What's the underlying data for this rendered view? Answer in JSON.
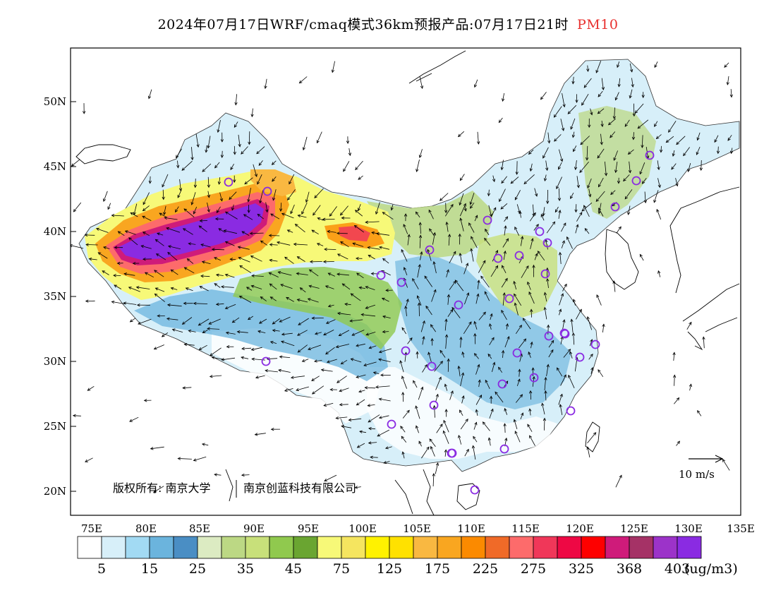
{
  "title": {
    "main": "2024年07月17日WRF/cmaq模式36km预报产品:07月17日21时",
    "variable": "PM10",
    "variable_color": "#e8302e"
  },
  "axes": {
    "lat_ticks": [
      "50N",
      "45N",
      "40N",
      "35N",
      "30N",
      "25N",
      "20N"
    ],
    "lon_ticks": [
      "75E",
      "80E",
      "85E",
      "90E",
      "95E",
      "100E",
      "105E",
      "110E",
      "115E",
      "120E",
      "125E",
      "130E",
      "135E"
    ]
  },
  "wind_legend": {
    "label": "10 m/s"
  },
  "credit": {
    "left": "版权所有: 南京大学",
    "right": "南京创蓝科技有限公司"
  },
  "colorbar": {
    "colors": [
      "#ffffff",
      "#d7eff9",
      "#a2daf3",
      "#6bb4dd",
      "#4a8ec4",
      "#dcebc2",
      "#bcd884",
      "#c8e07a",
      "#90c94e",
      "#6aa531",
      "#f7f978",
      "#f5e55f",
      "#fff200",
      "#ffe100",
      "#f9b841",
      "#f9a620",
      "#fb8a00",
      "#f06a28",
      "#fd6b6b",
      "#f03759",
      "#ee0844",
      "#fe0000",
      "#cf1b7a",
      "#a53266",
      "#9c33c9",
      "#8a2be2"
    ],
    "labels": [
      "5",
      "15",
      "25",
      "35",
      "45",
      "75",
      "125",
      "175",
      "225",
      "275",
      "325",
      "368",
      "403"
    ],
    "unit": "(ug/m3)"
  },
  "stations": 34
}
